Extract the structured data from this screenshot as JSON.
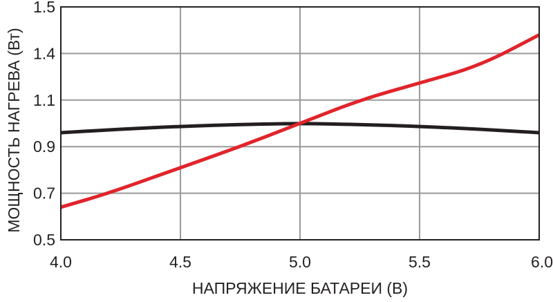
{
  "chart_data": {
    "type": "line",
    "title": "",
    "xlabel": "НАПРЯЖЕНИЕ БАТАРЕИ (В)",
    "ylabel": "МОЩНОСТЬ НАГРЕВА (Вт)",
    "xlim": [
      4.0,
      6.0
    ],
    "y_ticks": [
      {
        "value": 0.5,
        "label": "0.5"
      },
      {
        "value": 0.7,
        "label": "0.7"
      },
      {
        "value": 0.9,
        "label": "0.9"
      },
      {
        "value": 1.1,
        "label": "1.1"
      },
      {
        "value": 1.4,
        "label": "1.4"
      },
      {
        "value": 1.5,
        "label": "1.5"
      }
    ],
    "x_ticks": [
      {
        "value": 4.0,
        "label": "4.0"
      },
      {
        "value": 4.5,
        "label": "4.5"
      },
      {
        "value": 5.0,
        "label": "5.0"
      },
      {
        "value": 5.5,
        "label": "5.5"
      },
      {
        "value": 6.0,
        "label": "6.0"
      }
    ],
    "grid": true,
    "series": [
      {
        "color": "#231f20",
        "points": [
          [
            4.0,
            0.96
          ],
          [
            4.25,
            0.975
          ],
          [
            4.5,
            0.987
          ],
          [
            4.75,
            0.995
          ],
          [
            5.0,
            1.0
          ],
          [
            5.25,
            0.995
          ],
          [
            5.5,
            0.987
          ],
          [
            5.75,
            0.975
          ],
          [
            6.0,
            0.96
          ]
        ]
      },
      {
        "color": "#e1242b",
        "points": [
          [
            4.0,
            0.64
          ],
          [
            4.2,
            0.7
          ],
          [
            4.5,
            0.81
          ],
          [
            4.75,
            0.9
          ],
          [
            5.0,
            1.0
          ],
          [
            5.25,
            1.1
          ],
          [
            5.5,
            1.21
          ],
          [
            5.75,
            1.32
          ],
          [
            6.0,
            1.44
          ]
        ]
      }
    ]
  }
}
